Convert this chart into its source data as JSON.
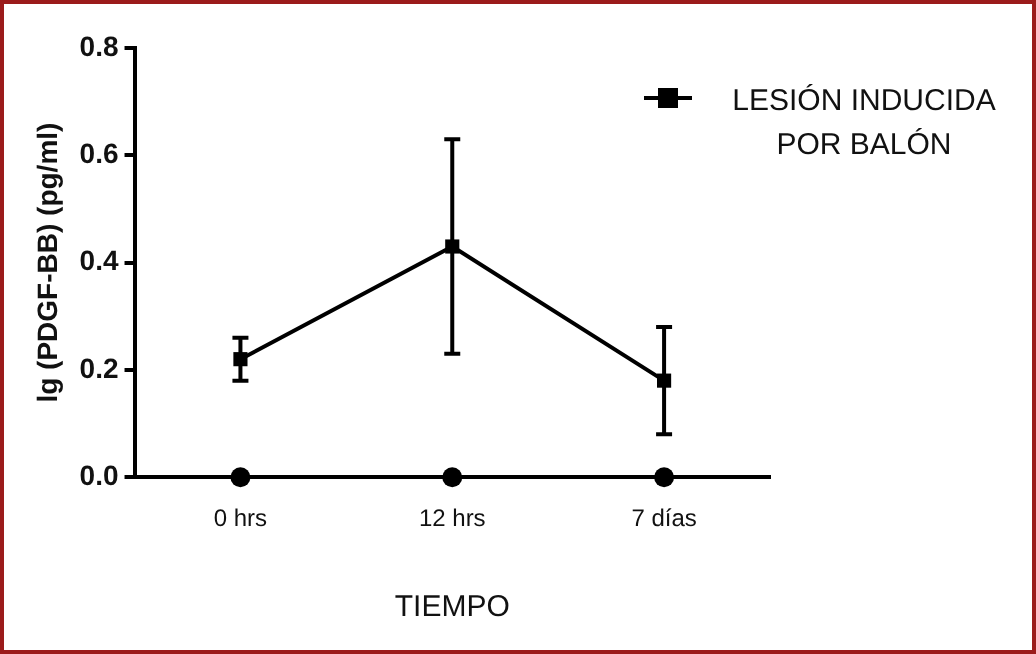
{
  "chart_data": {
    "type": "line",
    "xlabel": "TIEMPO",
    "ylabel": "lg (PDGF-BB) (pg/ml)",
    "categories": [
      "0 hrs",
      "12 hrs",
      "7 días"
    ],
    "series": [
      {
        "name": "LESIÓN INDUCIDA POR BALÓN",
        "type": "line",
        "color": "#000000",
        "marker": "square",
        "values": [
          0.22,
          0.43,
          0.18
        ],
        "errors": [
          [
            0.18,
            0.26
          ],
          [
            0.23,
            0.63
          ],
          [
            0.08,
            0.28
          ]
        ]
      },
      {
        "type": "scatter",
        "color": "#000000",
        "marker": "circle",
        "values": [
          0,
          0,
          0
        ]
      }
    ],
    "ylim": [
      0,
      0.8
    ],
    "yticks": [
      {
        "value": 0,
        "label": "0.0"
      },
      {
        "value": 0.2,
        "label": "0.2"
      },
      {
        "value": 0.4,
        "label": "0.4"
      },
      {
        "value": 0.6,
        "label": "0.6"
      },
      {
        "value": 0.8,
        "label": "0.8"
      }
    ],
    "grid": false,
    "legend": "top right",
    "line_style": "solid"
  }
}
